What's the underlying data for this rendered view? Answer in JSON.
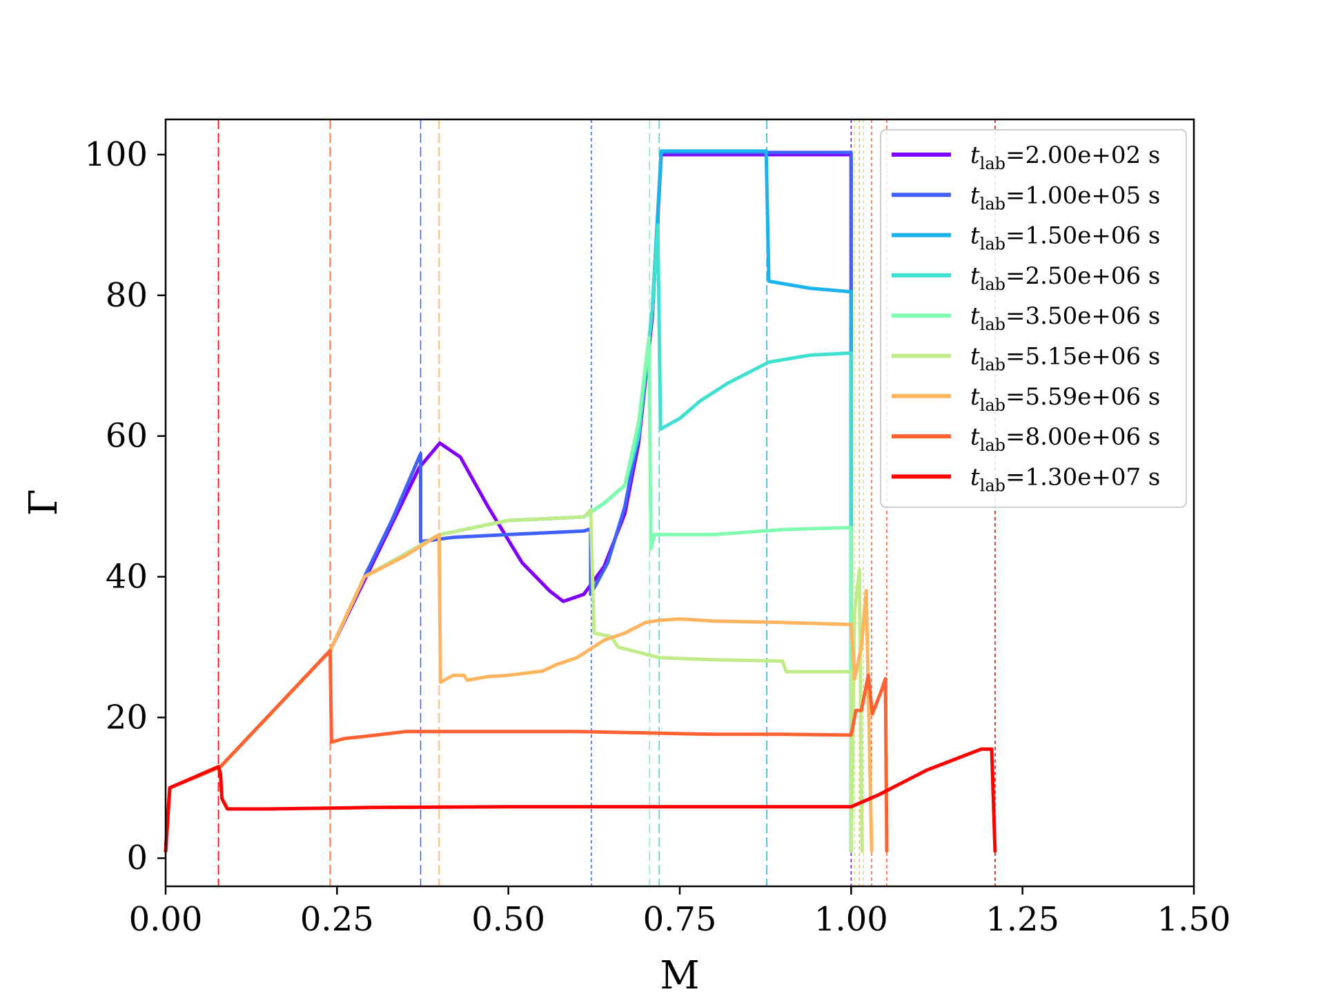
{
  "chart_data": {
    "type": "line",
    "xlabel": "M",
    "ylabel": "Γ",
    "xlim": [
      0,
      1.5
    ],
    "ylim": [
      -4,
      105
    ],
    "xticks": [
      "0.00",
      "0.25",
      "0.50",
      "0.75",
      "1.00",
      "1.25",
      "1.50"
    ],
    "yticks": [
      "0",
      "20",
      "40",
      "60",
      "80",
      "100"
    ],
    "grid": false,
    "legend_position": "top-right",
    "series": [
      {
        "name": "t_lab=2.00e+02 s",
        "label_main": "t",
        "label_sub": "lab",
        "label_value": "=2.00e+02 s",
        "color": "#7f00ff",
        "points": [
          [
            0.0,
            1
          ],
          [
            0.006,
            10
          ],
          [
            0.08,
            13
          ],
          [
            0.24,
            29.5
          ],
          [
            0.29,
            39.5
          ],
          [
            0.33,
            47.5
          ],
          [
            0.37,
            55.5
          ],
          [
            0.4,
            59
          ],
          [
            0.43,
            57
          ],
          [
            0.47,
            50
          ],
          [
            0.52,
            42
          ],
          [
            0.56,
            38
          ],
          [
            0.58,
            36.5
          ],
          [
            0.61,
            37.5
          ],
          [
            0.64,
            41.5
          ],
          [
            0.67,
            49
          ],
          [
            0.69,
            59
          ],
          [
            0.71,
            77
          ],
          [
            0.723,
            100
          ],
          [
            0.8,
            100
          ],
          [
            0.9,
            100
          ],
          [
            1.0,
            100
          ],
          [
            1.0,
            1
          ]
        ]
      },
      {
        "name": "t_lab=1.00e+05 s",
        "label_main": "t",
        "label_sub": "lab",
        "label_value": "=1.00e+05 s",
        "color": "#4062fa",
        "points": [
          [
            0.0,
            1
          ],
          [
            0.006,
            10
          ],
          [
            0.08,
            13
          ],
          [
            0.24,
            29.5
          ],
          [
            0.29,
            40
          ],
          [
            0.33,
            48
          ],
          [
            0.372,
            57.5
          ],
          [
            0.372,
            45
          ],
          [
            0.42,
            45.6
          ],
          [
            0.5,
            46
          ],
          [
            0.61,
            46.5
          ],
          [
            0.62,
            46.8
          ],
          [
            0.62,
            37.5
          ],
          [
            0.645,
            42
          ],
          [
            0.67,
            50
          ],
          [
            0.69,
            60
          ],
          [
            0.71,
            78
          ],
          [
            0.723,
            100.3
          ],
          [
            1.0,
            100.3
          ],
          [
            1.0,
            1
          ]
        ]
      },
      {
        "name": "t_lab=1.50e+06 s",
        "label_main": "t",
        "label_sub": "lab",
        "label_value": "=1.50e+06 s",
        "color": "#1cb2eb",
        "points": [
          [
            0.0,
            1
          ],
          [
            0.006,
            10
          ],
          [
            0.08,
            13
          ],
          [
            0.24,
            29.5
          ],
          [
            0.29,
            40
          ],
          [
            0.4,
            46
          ],
          [
            0.5,
            48
          ],
          [
            0.61,
            48.5
          ],
          [
            0.64,
            50.5
          ],
          [
            0.67,
            53
          ],
          [
            0.69,
            60
          ],
          [
            0.71,
            78
          ],
          [
            0.723,
            100.5
          ],
          [
            0.876,
            100.5
          ],
          [
            0.88,
            82
          ],
          [
            0.94,
            81
          ],
          [
            1.0,
            80.5
          ],
          [
            1.0,
            1
          ]
        ]
      },
      {
        "name": "t_lab=2.50e+06 s",
        "label_main": "t",
        "label_sub": "lab",
        "label_value": "=2.50e+06 s",
        "color": "#3fe0d0",
        "points": [
          [
            0.0,
            1
          ],
          [
            0.006,
            10
          ],
          [
            0.08,
            13
          ],
          [
            0.24,
            29.5
          ],
          [
            0.29,
            40
          ],
          [
            0.4,
            46
          ],
          [
            0.5,
            48
          ],
          [
            0.61,
            48.5
          ],
          [
            0.64,
            50.5
          ],
          [
            0.67,
            53
          ],
          [
            0.69,
            60
          ],
          [
            0.71,
            78
          ],
          [
            0.718,
            90
          ],
          [
            0.722,
            61
          ],
          [
            0.75,
            62.5
          ],
          [
            0.78,
            65
          ],
          [
            0.82,
            67.5
          ],
          [
            0.88,
            70.5
          ],
          [
            0.94,
            71.5
          ],
          [
            1.0,
            71.8
          ],
          [
            1.0,
            1
          ]
        ]
      },
      {
        "name": "t_lab=3.50e+06 s",
        "label_main": "t",
        "label_sub": "lab",
        "label_value": "=3.50e+06 s",
        "color": "#7ffcb0",
        "points": [
          [
            0.0,
            1
          ],
          [
            0.006,
            10
          ],
          [
            0.08,
            13
          ],
          [
            0.24,
            29.5
          ],
          [
            0.29,
            40
          ],
          [
            0.4,
            46
          ],
          [
            0.5,
            48
          ],
          [
            0.61,
            48.5
          ],
          [
            0.64,
            50.5
          ],
          [
            0.67,
            53
          ],
          [
            0.69,
            62
          ],
          [
            0.705,
            74
          ],
          [
            0.708,
            44
          ],
          [
            0.713,
            46
          ],
          [
            0.8,
            46
          ],
          [
            0.9,
            46.7
          ],
          [
            1.0,
            47
          ],
          [
            1.0,
            1
          ]
        ]
      },
      {
        "name": "t_lab=5.15e+06 s",
        "label_main": "t",
        "label_sub": "lab",
        "label_value": "=5.15e+06 s",
        "color": "#c0eb88",
        "points": [
          [
            0.0,
            1
          ],
          [
            0.006,
            10
          ],
          [
            0.08,
            13
          ],
          [
            0.24,
            29.5
          ],
          [
            0.29,
            40
          ],
          [
            0.4,
            46
          ],
          [
            0.5,
            48
          ],
          [
            0.61,
            48.5
          ],
          [
            0.62,
            49.5
          ],
          [
            0.625,
            32
          ],
          [
            0.65,
            31.5
          ],
          [
            0.66,
            30
          ],
          [
            0.68,
            29.5
          ],
          [
            0.7,
            29
          ],
          [
            0.72,
            28.5
          ],
          [
            0.8,
            28.2
          ],
          [
            0.9,
            28
          ],
          [
            0.905,
            26.5
          ],
          [
            1.0,
            26.5
          ],
          [
            1.0,
            1
          ],
          [
            1.005,
            35
          ],
          [
            1.012,
            41
          ],
          [
            1.016,
            1
          ]
        ]
      },
      {
        "name": "t_lab=5.59e+06 s",
        "label_main": "t",
        "label_sub": "lab",
        "label_value": "=5.59e+06 s",
        "color": "#ffb460",
        "points": [
          [
            0.0,
            1
          ],
          [
            0.006,
            10
          ],
          [
            0.08,
            13
          ],
          [
            0.24,
            29.5
          ],
          [
            0.29,
            40
          ],
          [
            0.35,
            43
          ],
          [
            0.399,
            46
          ],
          [
            0.401,
            25
          ],
          [
            0.41,
            25.5
          ],
          [
            0.42,
            26
          ],
          [
            0.435,
            26
          ],
          [
            0.44,
            25.3
          ],
          [
            0.47,
            25.8
          ],
          [
            0.5,
            26
          ],
          [
            0.55,
            26.6
          ],
          [
            0.57,
            27.5
          ],
          [
            0.6,
            28.5
          ],
          [
            0.64,
            31
          ],
          [
            0.67,
            32
          ],
          [
            0.7,
            33.5
          ],
          [
            0.72,
            33.8
          ],
          [
            0.75,
            34
          ],
          [
            0.8,
            33.7
          ],
          [
            0.9,
            33.5
          ],
          [
            1.0,
            33.2
          ],
          [
            1.005,
            25.5
          ],
          [
            1.015,
            30
          ],
          [
            1.022,
            38
          ],
          [
            1.03,
            1
          ]
        ]
      },
      {
        "name": "t_lab=8.00e+06 s",
        "label_main": "t",
        "label_sub": "lab",
        "label_value": "=8.00e+06 s",
        "color": "#ff6230",
        "points": [
          [
            0.0,
            1
          ],
          [
            0.006,
            10
          ],
          [
            0.08,
            13
          ],
          [
            0.24,
            29.5
          ],
          [
            0.242,
            16.5
          ],
          [
            0.26,
            17
          ],
          [
            0.29,
            17.3
          ],
          [
            0.35,
            18
          ],
          [
            0.45,
            18
          ],
          [
            0.6,
            18
          ],
          [
            0.7,
            17.8
          ],
          [
            0.8,
            17.6
          ],
          [
            0.9,
            17.6
          ],
          [
            1.0,
            17.5
          ],
          [
            1.007,
            21
          ],
          [
            1.015,
            21
          ],
          [
            1.025,
            26
          ],
          [
            1.031,
            20.5
          ],
          [
            1.045,
            24
          ],
          [
            1.05,
            25.5
          ],
          [
            1.052,
            1
          ]
        ]
      },
      {
        "name": "t_lab=1.30e+07 s",
        "label_main": "t",
        "label_sub": "lab",
        "label_value": "=1.30e+07 s",
        "color": "#ff0000",
        "points": [
          [
            0.0,
            1
          ],
          [
            0.006,
            10
          ],
          [
            0.077,
            13
          ],
          [
            0.08,
            12
          ],
          [
            0.082,
            8.5
          ],
          [
            0.09,
            7
          ],
          [
            0.15,
            7
          ],
          [
            0.3,
            7.2
          ],
          [
            0.5,
            7.3
          ],
          [
            0.7,
            7.3
          ],
          [
            0.9,
            7.3
          ],
          [
            1.0,
            7.3
          ],
          [
            1.04,
            9
          ],
          [
            1.07,
            10.5
          ],
          [
            1.11,
            12.5
          ],
          [
            1.15,
            14
          ],
          [
            1.19,
            15.5
          ],
          [
            1.205,
            15.5
          ],
          [
            1.21,
            1
          ]
        ]
      }
    ],
    "vlines": [
      {
        "x": 0.077,
        "color": "#ff0000",
        "dash": "long"
      },
      {
        "x": 0.24,
        "color": "#ff6230",
        "dash": "long"
      },
      {
        "x": 0.372,
        "color": "#4062fa",
        "dash": "long"
      },
      {
        "x": 0.399,
        "color": "#ffb460",
        "dash": "long"
      },
      {
        "x": 0.621,
        "color": "#4062fa",
        "dash": "short"
      },
      {
        "x": 0.706,
        "color": "#7ffcb0",
        "dash": "long"
      },
      {
        "x": 0.72,
        "color": "#3fe0d0",
        "dash": "long"
      },
      {
        "x": 0.877,
        "color": "#1cb2eb",
        "dash": "long"
      },
      {
        "x": 1.0,
        "color": "#7f00ff",
        "dash": "short"
      },
      {
        "x": 1.005,
        "color": "#c0eb88",
        "dash": "short"
      },
      {
        "x": 1.012,
        "color": "#ffb460",
        "dash": "short"
      },
      {
        "x": 1.018,
        "color": "#c0eb88",
        "dash": "short"
      },
      {
        "x": 1.03,
        "color": "#ff6230",
        "dash": "short"
      },
      {
        "x": 1.052,
        "color": "#ff6230",
        "dash": "short"
      },
      {
        "x": 1.21,
        "color": "#ff0000",
        "dash": "short"
      }
    ]
  }
}
